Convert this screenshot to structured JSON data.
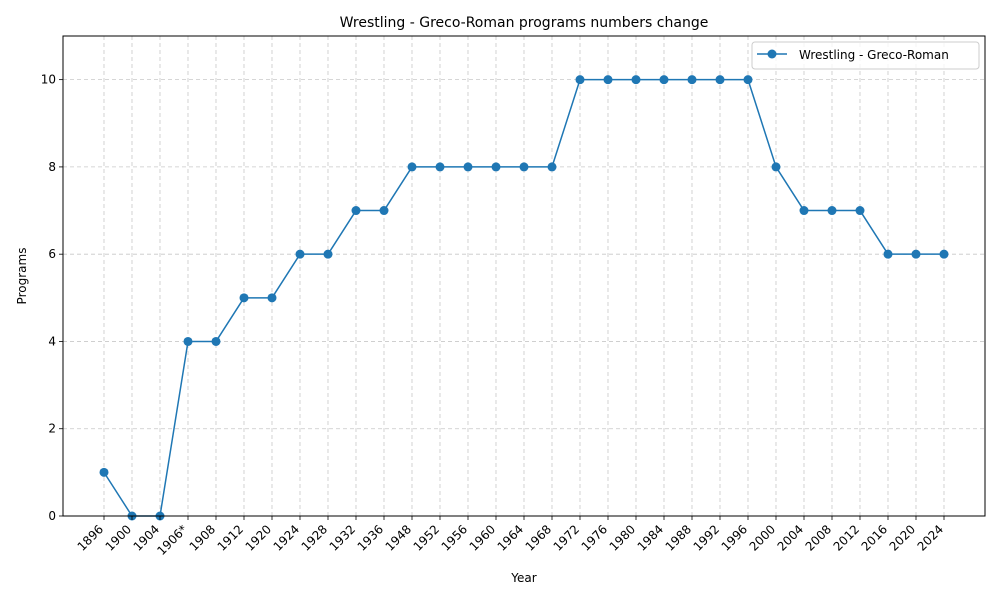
{
  "chart_data": {
    "type": "line",
    "title": "Wrestling - Greco-Roman programs numbers change",
    "xlabel": "Year",
    "ylabel": "Programs",
    "categories": [
      "1896",
      "1900",
      "1904",
      "1906*",
      "1908",
      "1912",
      "1920",
      "1924",
      "1928",
      "1932",
      "1936",
      "1948",
      "1952",
      "1956",
      "1960",
      "1964",
      "1968",
      "1972",
      "1976",
      "1980",
      "1984",
      "1988",
      "1992",
      "1996",
      "2000",
      "2004",
      "2008",
      "2012",
      "2016",
      "2020",
      "2024"
    ],
    "series": [
      {
        "name": "Wrestling - Greco-Roman",
        "color": "#1f77b4",
        "values": [
          1,
          0,
          0,
          4,
          4,
          5,
          5,
          6,
          6,
          7,
          7,
          8,
          8,
          8,
          8,
          8,
          8,
          10,
          10,
          10,
          10,
          10,
          10,
          10,
          8,
          7,
          7,
          7,
          6,
          6,
          6
        ]
      }
    ],
    "ylim": [
      0,
      11
    ],
    "yticks": [
      0,
      2,
      4,
      6,
      8,
      10
    ],
    "grid": true,
    "legend_position": "top-right"
  }
}
